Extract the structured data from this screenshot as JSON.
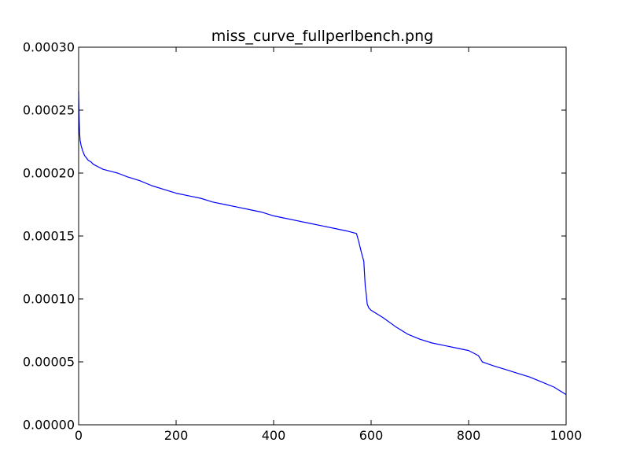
{
  "chart_data": {
    "type": "line",
    "title": "miss_curve_fullperlbench.png",
    "xlabel": "",
    "ylabel": "",
    "xlim": [
      0,
      1000
    ],
    "ylim": [
      0,
      0.0003
    ],
    "x_ticks": [
      0,
      200,
      400,
      600,
      800,
      1000
    ],
    "x_tick_labels": [
      "0",
      "200",
      "400",
      "600",
      "800",
      "1000"
    ],
    "y_ticks": [
      0,
      5e-05,
      0.0001,
      0.00015,
      0.0002,
      0.00025,
      0.0003
    ],
    "y_tick_labels": [
      "0.00000",
      "0.00005",
      "0.00010",
      "0.00015",
      "0.00020",
      "0.00025",
      "0.00030"
    ],
    "grid": false,
    "legend": false,
    "series": [
      {
        "color": "#0000ff",
        "x": [
          0,
          1,
          2,
          3,
          5,
          8,
          12,
          16,
          20,
          25,
          30,
          40,
          50,
          60,
          70,
          80,
          100,
          125,
          150,
          175,
          200,
          225,
          250,
          275,
          300,
          325,
          350,
          375,
          400,
          425,
          450,
          475,
          500,
          525,
          550,
          570,
          575,
          580,
          585,
          588,
          590,
          592,
          595,
          600,
          625,
          650,
          675,
          700,
          725,
          750,
          775,
          800,
          820,
          825,
          828,
          835,
          850,
          875,
          900,
          925,
          950,
          975,
          1000
        ],
        "y": [
          0.000265,
          0.000245,
          0.000232,
          0.000226,
          0.000222,
          0.000218,
          0.000214,
          0.000212,
          0.00021,
          0.000209,
          0.000207,
          0.000205,
          0.000203,
          0.000202,
          0.000201,
          0.0002,
          0.000197,
          0.000194,
          0.00019,
          0.000187,
          0.000184,
          0.000182,
          0.00018,
          0.000177,
          0.000175,
          0.000173,
          0.000171,
          0.000169,
          0.000166,
          0.000164,
          0.000162,
          0.00016,
          0.000158,
          0.000156,
          0.000154,
          0.000152,
          0.000145,
          0.000137,
          0.00013,
          0.00011,
          0.000104,
          9.6e-05,
          9.3e-05,
          9.1e-05,
          8.5e-05,
          7.8e-05,
          7.2e-05,
          6.8e-05,
          6.5e-05,
          6.3e-05,
          6.1e-05,
          5.9e-05,
          5.5e-05,
          5.2e-05,
          5e-05,
          4.9e-05,
          4.7e-05,
          4.4e-05,
          4.1e-05,
          3.8e-05,
          3.4e-05,
          3e-05,
          2.4e-05
        ]
      }
    ]
  }
}
